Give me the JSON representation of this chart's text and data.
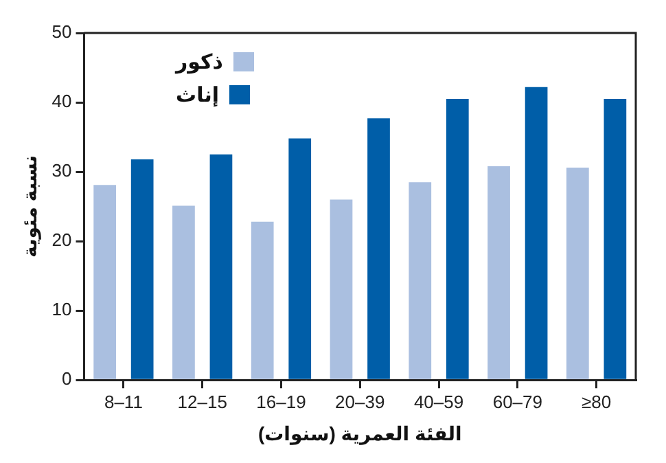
{
  "chart_data": {
    "type": "bar",
    "xlabel": "الفئة العمرية (سنوات)",
    "ylabel": "نسبة مئوية",
    "categories": [
      "8–11",
      "12–15",
      "16–19",
      "20–39",
      "40–59",
      "60–79",
      "≥80"
    ],
    "series": [
      {
        "name": "ذكور",
        "color": "#aabfe0",
        "values": [
          28.1,
          25.1,
          22.8,
          26.0,
          28.5,
          30.8,
          30.6
        ]
      },
      {
        "name": "إناث",
        "color": "#005ea8",
        "values": [
          31.8,
          32.5,
          34.8,
          37.7,
          40.5,
          42.2,
          40.5
        ]
      }
    ],
    "ylim": [
      0,
      50
    ],
    "yticks": [
      0,
      10,
      20,
      30,
      40,
      50
    ],
    "grid": false,
    "legend": "top left"
  }
}
